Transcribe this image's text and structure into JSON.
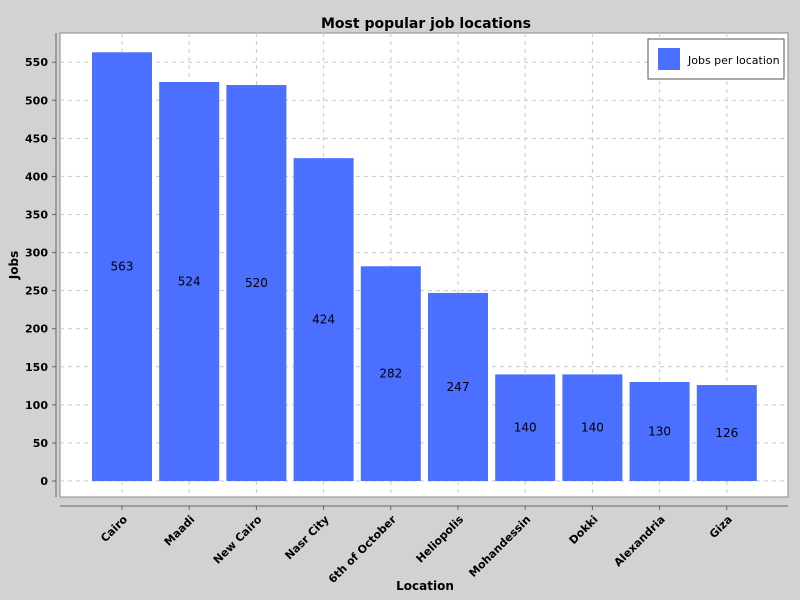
{
  "chart_data": {
    "type": "bar",
    "title": "Most popular job locations",
    "xlabel": "Location",
    "ylabel": "Jobs",
    "ylim": [
      0,
      580
    ],
    "yticks": [
      0,
      50,
      100,
      150,
      200,
      250,
      300,
      350,
      400,
      450,
      500,
      550
    ],
    "grid": true,
    "legend_position": "top-right",
    "categories": [
      "Cairo",
      "Maadi",
      "New Cairo",
      "Nasr City",
      "6th of October",
      "Heliopolis",
      "Mohandessin",
      "Dokki",
      "Alexandria",
      "Giza"
    ],
    "series": [
      {
        "name": "Jobs per location",
        "color": "#4b6fff",
        "values": [
          563,
          524,
          520,
          424,
          282,
          247,
          140,
          140,
          130,
          126
        ]
      }
    ]
  }
}
